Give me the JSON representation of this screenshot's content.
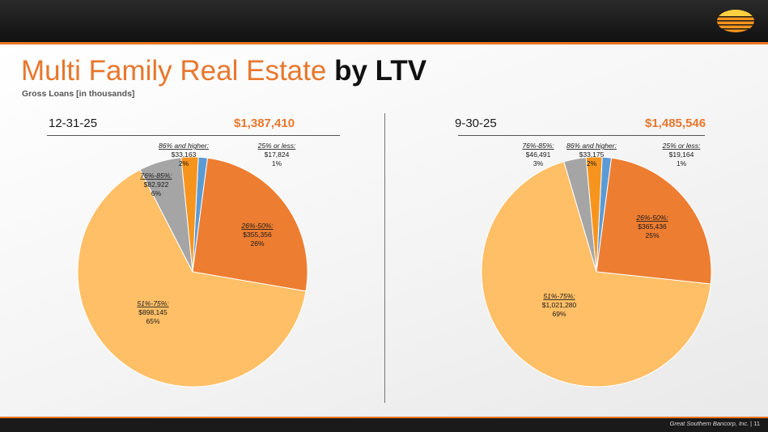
{
  "title_part1": "Multi Family Real Estate",
  "title_part2": "by LTV",
  "subtitle": "Gross Loans [in thousands]",
  "colors": {
    "accent": "#e8772e",
    "light_orange": "#ffbf66",
    "blue": "#5b9bd5",
    "gray": "#a5a5a5",
    "dark_orange": "#ed7d31",
    "mid_orange": "#f7941d"
  },
  "chart_data": [
    {
      "type": "pie",
      "period": "12-31-25",
      "total": "$1,387,410",
      "slices": [
        {
          "label": "25% or less:",
          "value_text": "$17,824",
          "pct_text": "1%",
          "value": 17824,
          "color": "#5b9bd5"
        },
        {
          "label": "26%-50%:",
          "value_text": "$355,356",
          "pct_text": "26%",
          "value": 355356,
          "color": "#ed7d31"
        },
        {
          "label": "51%-75%:",
          "value_text": "$898,145",
          "pct_text": "65%",
          "value": 898145,
          "color": "#ffbf66"
        },
        {
          "label": "76%-85%:",
          "value_text": "$82,922",
          "pct_text": "6%",
          "value": 82922,
          "color": "#a5a5a5"
        },
        {
          "label": "86% and higher:",
          "value_text": "$33,163",
          "pct_text": "2%",
          "value": 33163,
          "color": "#f7941d"
        }
      ]
    },
    {
      "type": "pie",
      "period": "9-30-25",
      "total": "$1,485,546",
      "slices": [
        {
          "label": "25% or less:",
          "value_text": "$19,164",
          "pct_text": "1%",
          "value": 19164,
          "color": "#5b9bd5"
        },
        {
          "label": "26%-50%:",
          "value_text": "$365,436",
          "pct_text": "25%",
          "value": 365436,
          "color": "#ed7d31"
        },
        {
          "label": "51%-75%:",
          "value_text": "$1,021,280",
          "pct_text": "69%",
          "value": 1021280,
          "color": "#ffbf66"
        },
        {
          "label": "76%-85%:",
          "value_text": "$46,491",
          "pct_text": "3%",
          "value": 46491,
          "color": "#a5a5a5"
        },
        {
          "label": "86% and higher:",
          "value_text": "$33,175",
          "pct_text": "2%",
          "value": 33175,
          "color": "#f7941d"
        }
      ]
    }
  ],
  "footer": {
    "company": "Great Southern Bancorp, Inc.",
    "separator": "|",
    "page": "11"
  }
}
